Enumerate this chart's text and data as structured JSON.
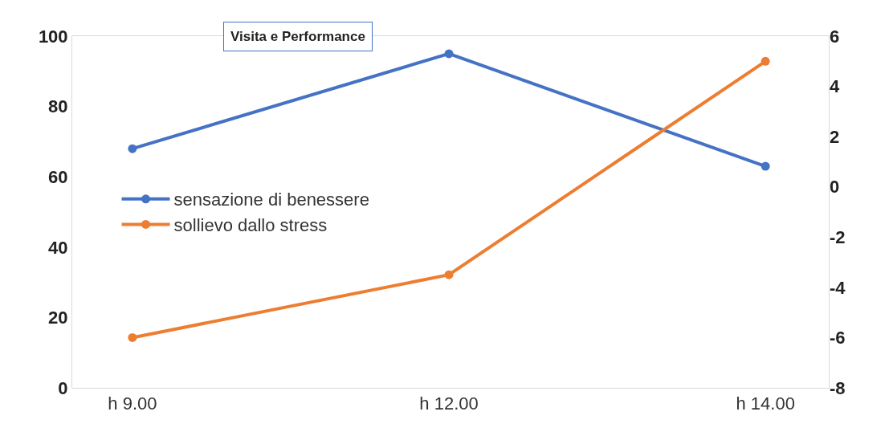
{
  "chart_data": {
    "type": "line",
    "title": "Visita e Performance",
    "categories": [
      "h 9.00",
      "h 12.00",
      "h 14.00"
    ],
    "series": [
      {
        "name": "sensazione di benessere",
        "color": "#4472c4",
        "values": [
          68,
          95,
          63
        ]
      },
      {
        "name": "sollievo dallo stress",
        "color": "#ed7d31",
        "values": [
          -6,
          -3.5,
          5
        ],
        "axis": "y2"
      }
    ],
    "ylim": [
      0,
      100
    ],
    "yticks": [
      0,
      20,
      40,
      60,
      80,
      100
    ],
    "y2lim": [
      -8,
      6
    ],
    "y2ticks": [
      -8,
      -6,
      -4,
      -2,
      0,
      2,
      4,
      6
    ],
    "legend": "left",
    "marker": "circle",
    "line_style": "solid"
  }
}
